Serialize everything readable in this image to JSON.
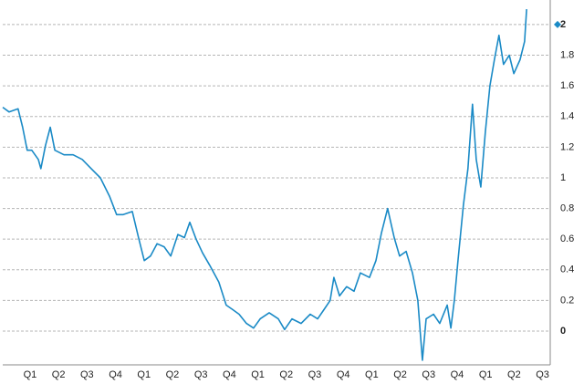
{
  "chart_data": {
    "type": "line",
    "x": [
      -0.96,
      -0.74,
      -0.42,
      -0.26,
      -0.1,
      0.06,
      0.29,
      0.38,
      0.54,
      0.71,
      0.87,
      1.19,
      1.51,
      1.83,
      2.15,
      2.47,
      2.79,
      3.04,
      3.27,
      3.59,
      3.81,
      4.01,
      4.23,
      4.46,
      4.71,
      4.94,
      5.19,
      5.42,
      5.61,
      5.83,
      6.06,
      6.31,
      6.63,
      6.89,
      7.12,
      7.34,
      7.6,
      7.85,
      8.08,
      8.4,
      8.72,
      8.94,
      9.2,
      9.52,
      9.84,
      10.1,
      10.32,
      10.54,
      10.67,
      10.87,
      11.12,
      11.38,
      11.6,
      11.92,
      12.15,
      12.34,
      12.56,
      12.79,
      12.98,
      13.21,
      13.43,
      13.62,
      13.78,
      13.91,
      14.17,
      14.39,
      14.65,
      14.78,
      14.9,
      15.03,
      15.22,
      15.38,
      15.54,
      15.67,
      15.83,
      15.99,
      16.15,
      16.31,
      16.47,
      16.63,
      16.83,
      16.99,
      17.21,
      17.37,
      17.44
    ],
    "series": [
      {
        "color": "#1a8ac6",
        "values": [
          1.46,
          1.43,
          1.45,
          1.33,
          1.18,
          1.18,
          1.12,
          1.06,
          1.21,
          1.33,
          1.18,
          1.15,
          1.15,
          1.12,
          1.06,
          1.0,
          0.88,
          0.76,
          0.76,
          0.78,
          0.61,
          0.46,
          0.49,
          0.57,
          0.55,
          0.49,
          0.63,
          0.61,
          0.71,
          0.6,
          0.51,
          0.43,
          0.32,
          0.17,
          0.14,
          0.11,
          0.05,
          0.02,
          0.08,
          0.12,
          0.08,
          0.01,
          0.08,
          0.05,
          0.11,
          0.08,
          0.14,
          0.2,
          0.35,
          0.23,
          0.29,
          0.26,
          0.38,
          0.35,
          0.46,
          0.64,
          0.8,
          0.61,
          0.49,
          0.52,
          0.38,
          0.2,
          -0.19,
          0.08,
          0.11,
          0.05,
          0.17,
          0.02,
          0.2,
          0.46,
          0.82,
          1.06,
          1.48,
          1.12,
          0.94,
          1.3,
          1.6,
          1.77,
          1.93,
          1.74,
          1.8,
          1.68,
          1.77,
          1.89,
          2.1
        ]
      }
    ],
    "last_value": 2,
    "xlim": [
      -0.96,
      18.27
    ],
    "xticks": [
      {
        "value": 0,
        "label": "Q1"
      },
      {
        "value": 1,
        "label": "Q2"
      },
      {
        "value": 2,
        "label": "Q3"
      },
      {
        "value": 3,
        "label": "Q4"
      },
      {
        "value": 4,
        "label": "Q1"
      },
      {
        "value": 5,
        "label": "Q2"
      },
      {
        "value": 6,
        "label": "Q3"
      },
      {
        "value": 7,
        "label": "Q4"
      },
      {
        "value": 8,
        "label": "Q1"
      },
      {
        "value": 9,
        "label": "Q2"
      },
      {
        "value": 10,
        "label": "Q3"
      },
      {
        "value": 11,
        "label": "Q4"
      },
      {
        "value": 12,
        "label": "Q1"
      },
      {
        "value": 13,
        "label": "Q2"
      },
      {
        "value": 14,
        "label": "Q3"
      },
      {
        "value": 15,
        "label": "Q4"
      },
      {
        "value": 16,
        "label": "Q1"
      },
      {
        "value": 17,
        "label": "Q2"
      },
      {
        "value": 18,
        "label": "Q3"
      }
    ],
    "ylim": [
      -0.22,
      2.16
    ],
    "yticks": [
      0,
      0.2,
      0.4,
      0.6,
      0.8,
      1,
      1.2,
      1.4,
      1.6,
      1.8,
      2
    ],
    "grid": true
  }
}
